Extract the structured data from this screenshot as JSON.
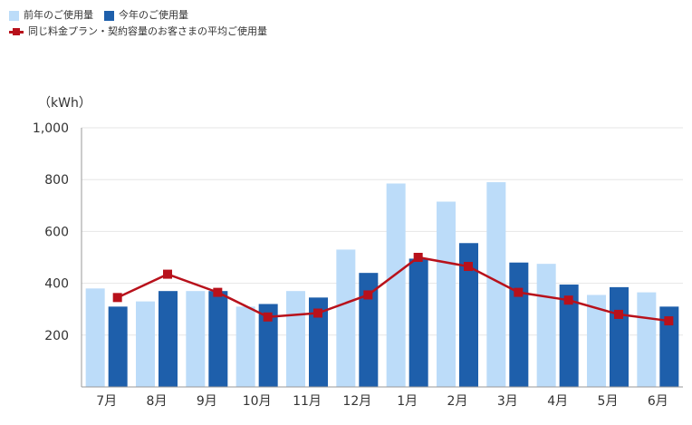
{
  "legend": {
    "prev_year": "前年のご使用量",
    "this_year": "今年のご使用量",
    "average": "同じ料金プラン・契約容量のお客さまの平均ご使用量"
  },
  "colors": {
    "prev_year": "#bcdcf9",
    "this_year": "#1e5fab",
    "average": "#b8111b",
    "grid": "#e6e6e6",
    "axis": "#999999"
  },
  "chart_data": {
    "type": "bar",
    "unit_label": "（kWh）",
    "categories": [
      "7月",
      "8月",
      "9月",
      "10月",
      "11月",
      "12月",
      "1月",
      "2月",
      "3月",
      "4月",
      "5月",
      "6月"
    ],
    "series": [
      {
        "name": "前年のご使用量",
        "type": "bar",
        "values": [
          380,
          330,
          370,
          310,
          370,
          530,
          785,
          715,
          790,
          475,
          355,
          365
        ]
      },
      {
        "name": "今年のご使用量",
        "type": "bar",
        "values": [
          310,
          370,
          370,
          320,
          345,
          440,
          495,
          555,
          480,
          395,
          385,
          310
        ]
      },
      {
        "name": "同じ料金プラン・契約容量のお客さまの平均ご使用量",
        "type": "line",
        "values": [
          345,
          435,
          365,
          270,
          285,
          355,
          500,
          465,
          365,
          335,
          280,
          255
        ]
      }
    ],
    "yticks": [
      200,
      400,
      600,
      800,
      1000
    ],
    "ytick_labels": [
      "200",
      "400",
      "600",
      "800",
      "1,000"
    ],
    "ylim": [
      0,
      1000
    ],
    "grid": true,
    "legend_position": "top-left"
  }
}
